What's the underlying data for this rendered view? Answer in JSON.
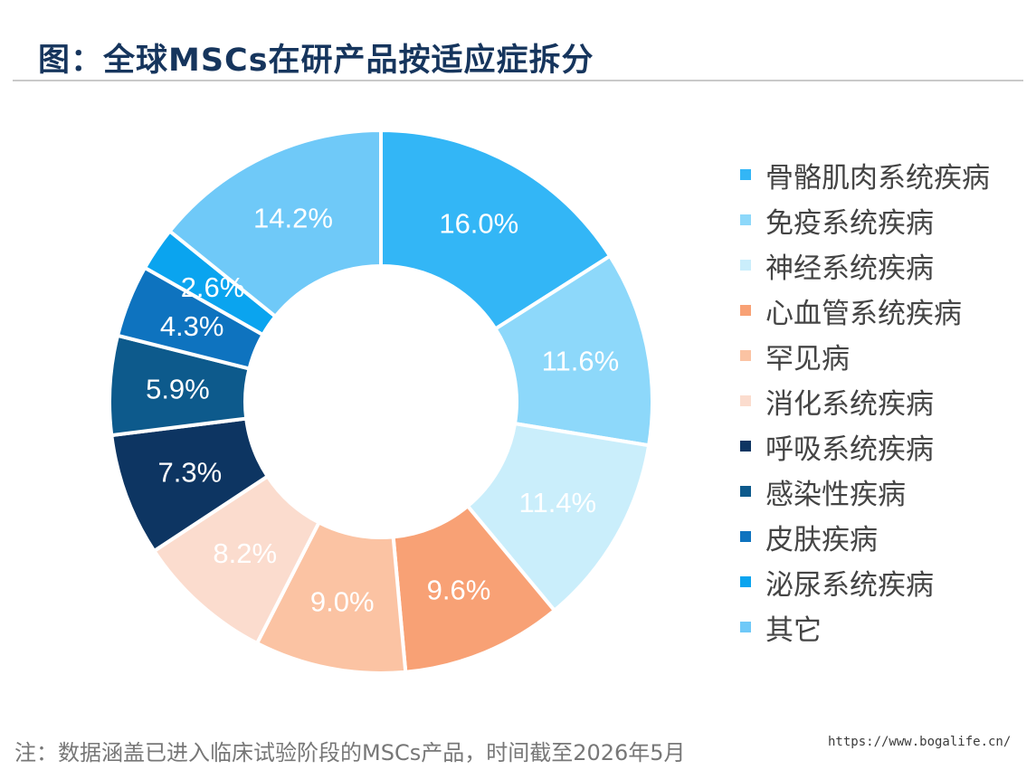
{
  "title": "图：全球MSCs在研产品按适应症拆分",
  "note": "注：数据涵盖已进入临床试验阶段的MSCs产品，时间截至2026年5月",
  "watermark": "https://www.bogalife.cn/",
  "chart_data": {
    "type": "pie",
    "variant": "donut",
    "title": "全球MSCs在研产品按适应症拆分",
    "legend_position": "right",
    "categories": [
      "骨骼肌肉系统疾病",
      "免疫系统疾病",
      "神经系统疾病",
      "心血管系统疾病",
      "罕见病",
      "消化系统疾病",
      "呼吸系统疾病",
      "感染性疾病",
      "皮肤疾病",
      "泌尿系统疾病",
      "其它"
    ],
    "values": [
      16.0,
      11.6,
      11.4,
      9.6,
      9.0,
      8.2,
      7.3,
      5.9,
      4.3,
      2.6,
      14.2
    ],
    "labels": [
      "16.0%",
      "11.6%",
      "11.4%",
      "9.6%",
      "9.0%",
      "8.2%",
      "7.3%",
      "5.9%",
      "4.3%",
      "2.6%",
      "14.2%"
    ],
    "colors": [
      "#33b6f6",
      "#8dd8fa",
      "#caeefb",
      "#f8a175",
      "#fbc3a3",
      "#fbdcce",
      "#0d3562",
      "#0d5a8c",
      "#0e73bf",
      "#0aa4ef",
      "#6fc9f8"
    ]
  }
}
